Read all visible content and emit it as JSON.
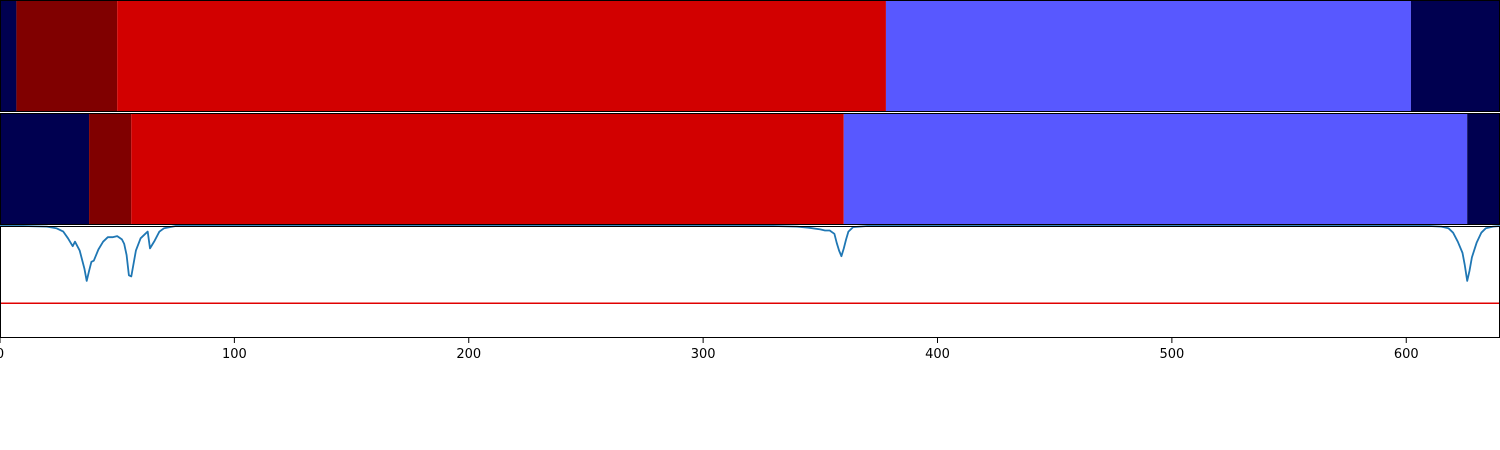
{
  "chart_data": {
    "type": "segmentation-strip",
    "xlim": [
      0,
      640
    ],
    "xticks": [
      0,
      100,
      200,
      300,
      400,
      500,
      600
    ],
    "tick_labels": [
      "0",
      "100",
      "200",
      "300",
      "400",
      "500",
      "600"
    ],
    "colors": {
      "navy": "#000050",
      "dark_red": "#800000",
      "red": "#d20000",
      "blue": "#5858ff",
      "line": "#1f77b4",
      "threshold": "#e00000"
    },
    "rows": [
      {
        "segments": [
          {
            "start": 0,
            "end": 7,
            "color": "navy"
          },
          {
            "start": 7,
            "end": 50,
            "color": "dark_red"
          },
          {
            "start": 50,
            "end": 378,
            "color": "red"
          },
          {
            "start": 378,
            "end": 602,
            "color": "blue"
          },
          {
            "start": 602,
            "end": 640,
            "color": "navy"
          }
        ]
      },
      {
        "segments": [
          {
            "start": 0,
            "end": 38,
            "color": "navy"
          },
          {
            "start": 38,
            "end": 56,
            "color": "dark_red"
          },
          {
            "start": 56,
            "end": 360,
            "color": "red"
          },
          {
            "start": 360,
            "end": 626,
            "color": "blue"
          },
          {
            "start": 626,
            "end": 640,
            "color": "navy"
          }
        ]
      }
    ],
    "line_panel": {
      "ylim": [
        0,
        1
      ],
      "threshold": 0.31,
      "series": [
        [
          0,
          1.0
        ],
        [
          10,
          1.0
        ],
        [
          20,
          0.995
        ],
        [
          24,
          0.98
        ],
        [
          27,
          0.95
        ],
        [
          29,
          0.89
        ],
        [
          31,
          0.82
        ],
        [
          32,
          0.86
        ],
        [
          34,
          0.78
        ],
        [
          36,
          0.62
        ],
        [
          37,
          0.51
        ],
        [
          38,
          0.6
        ],
        [
          39,
          0.68
        ],
        [
          40,
          0.69
        ],
        [
          42,
          0.79
        ],
        [
          44,
          0.86
        ],
        [
          46,
          0.9
        ],
        [
          48,
          0.9
        ],
        [
          50,
          0.91
        ],
        [
          52,
          0.88
        ],
        [
          53,
          0.84
        ],
        [
          54,
          0.74
        ],
        [
          55,
          0.56
        ],
        [
          56,
          0.55
        ],
        [
          58,
          0.78
        ],
        [
          60,
          0.89
        ],
        [
          62,
          0.93
        ],
        [
          63,
          0.95
        ],
        [
          64,
          0.8
        ],
        [
          66,
          0.87
        ],
        [
          68,
          0.95
        ],
        [
          70,
          0.98
        ],
        [
          75,
          1.0
        ],
        [
          90,
          1.0
        ],
        [
          330,
          1.0
        ],
        [
          340,
          0.995
        ],
        [
          345,
          0.985
        ],
        [
          350,
          0.97
        ],
        [
          352,
          0.96
        ],
        [
          354,
          0.96
        ],
        [
          356,
          0.93
        ],
        [
          357,
          0.85
        ],
        [
          358,
          0.78
        ],
        [
          359,
          0.73
        ],
        [
          360,
          0.8
        ],
        [
          361,
          0.88
        ],
        [
          362,
          0.95
        ],
        [
          364,
          0.99
        ],
        [
          370,
          1.0
        ],
        [
          380,
          1.0
        ],
        [
          600,
          1.0
        ],
        [
          610,
          1.0
        ],
        [
          615,
          0.995
        ],
        [
          618,
          0.98
        ],
        [
          620,
          0.94
        ],
        [
          622,
          0.86
        ],
        [
          624,
          0.76
        ],
        [
          625,
          0.65
        ],
        [
          626,
          0.51
        ],
        [
          627,
          0.6
        ],
        [
          628,
          0.72
        ],
        [
          630,
          0.85
        ],
        [
          632,
          0.94
        ],
        [
          634,
          0.98
        ],
        [
          637,
          0.995
        ],
        [
          640,
          1.0
        ]
      ]
    }
  }
}
